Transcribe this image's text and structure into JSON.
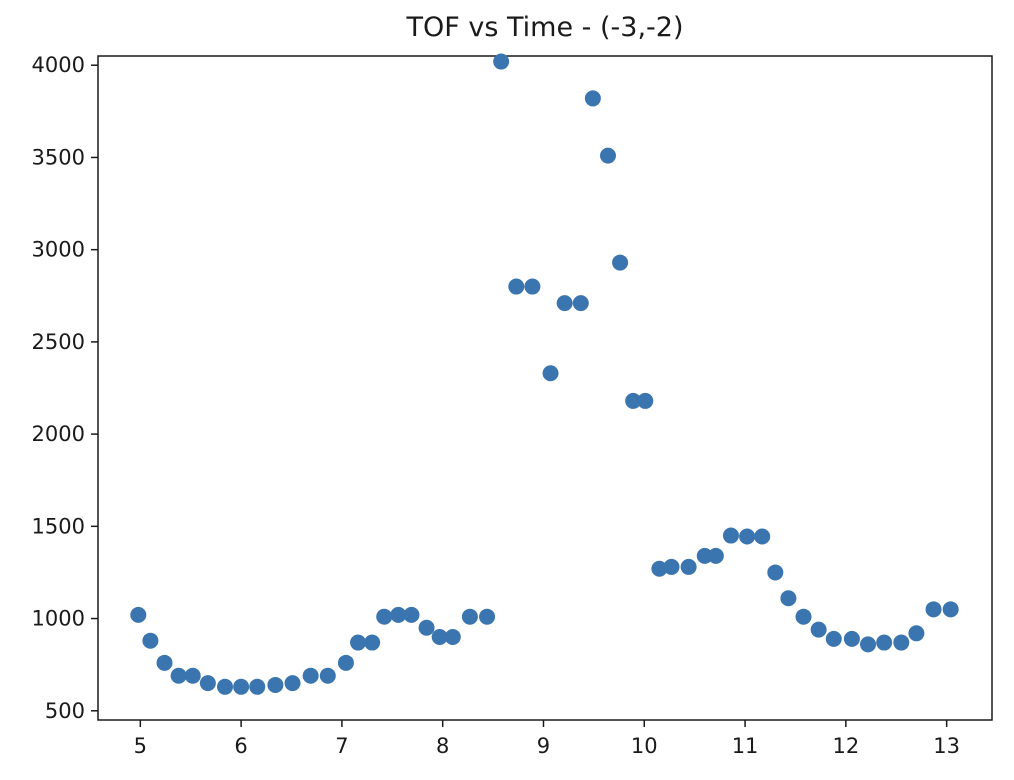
{
  "chart_data": {
    "type": "scatter",
    "title": "TOF vs Time - (-3,-2)",
    "xlabel": "",
    "ylabel": "",
    "xlim": [
      4.58,
      13.45
    ],
    "ylim": [
      450,
      4050
    ],
    "xticks": [
      5,
      6,
      7,
      8,
      9,
      10,
      11,
      12,
      13
    ],
    "xtick_labels": [
      "5",
      "6",
      "7",
      "8",
      "9",
      "10",
      "11",
      "12",
      "13"
    ],
    "yticks": [
      500,
      1000,
      1500,
      2000,
      2500,
      3000,
      3500,
      4000
    ],
    "ytick_labels": [
      "500",
      "1000",
      "1500",
      "2000",
      "2500",
      "3000",
      "3500",
      "4000"
    ],
    "grid": false,
    "legend": "none",
    "marker_color": "#3b75af",
    "series": [
      {
        "x": [
          4.98,
          5.1,
          5.24,
          5.38,
          5.52,
          5.67,
          5.84,
          6.0,
          6.16,
          6.34,
          6.51,
          6.69,
          6.86,
          7.04,
          7.16,
          7.3,
          7.42,
          7.56,
          7.69,
          7.84,
          7.97,
          8.1,
          8.27,
          8.44,
          8.58,
          8.73,
          8.89,
          9.07,
          9.21,
          9.37,
          9.49,
          9.64,
          9.76,
          9.89,
          10.01,
          10.15,
          10.27,
          10.44,
          10.6,
          10.71,
          10.86,
          11.02,
          11.17,
          11.3,
          11.43,
          11.58,
          11.73,
          11.88,
          12.06,
          12.22,
          12.38,
          12.55,
          12.7,
          12.87,
          13.04
        ],
        "y": [
          1020,
          880,
          760,
          690,
          690,
          650,
          630,
          630,
          630,
          640,
          650,
          690,
          690,
          760,
          870,
          870,
          1010,
          1020,
          1020,
          950,
          900,
          900,
          1010,
          1010,
          4020,
          2800,
          2800,
          2330,
          2710,
          2710,
          3820,
          3510,
          2930,
          2180,
          2180,
          1270,
          1280,
          1280,
          1340,
          1340,
          1450,
          1445,
          1445,
          1250,
          1110,
          1010,
          940,
          890,
          890,
          860,
          870,
          870,
          920,
          1050,
          1050
        ]
      }
    ]
  }
}
